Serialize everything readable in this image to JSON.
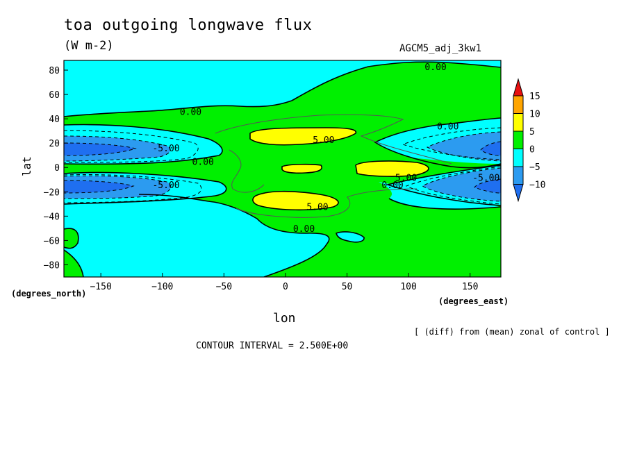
{
  "chart_data": {
    "type": "heatmap",
    "subtype": "filled contour map",
    "title": "toa outgoing longwave flux",
    "units": "(W m-2)",
    "experiment": "AGCM5_adj_3kw1",
    "xlabel": "lon",
    "ylabel": "lat",
    "x_units": "(degrees_east)",
    "y_units": "(degrees_north)",
    "xlim": [
      -180,
      175
    ],
    "ylim": [
      -90,
      88
    ],
    "x_ticks": [
      -150,
      -100,
      -50,
      0,
      50,
      100,
      150
    ],
    "y_ticks": [
      80,
      60,
      40,
      20,
      0,
      -20,
      -40,
      -60,
      -80
    ],
    "x_tick_labels": [
      "−150",
      "−100",
      "−50",
      "0",
      "50",
      "100",
      "150"
    ],
    "y_tick_labels": [
      "80",
      "60",
      "40",
      "20",
      "0",
      "−20",
      "−40",
      "−60",
      "−80"
    ],
    "note": "[ (diff) from (mean) zonal of control ]",
    "contour_interval_text": "CONTOUR INTERVAL = 2.500E+00",
    "contour_interval": 2.5,
    "colorbar": {
      "levels": [
        -10,
        -5,
        0,
        5,
        10,
        15
      ],
      "labels": [
        "15",
        "10",
        "5",
        "0",
        "−5",
        "−10"
      ],
      "colors": {
        "below_-10": "#1f6ff0",
        "-10_to_-5": "#2c9bf0",
        "-5_to_0": "#00ffff",
        "0_to_5": "#00f000",
        "5_to_10": "#ffff00",
        "10_to_15": "#ffa500",
        "above_15": "#e81010"
      }
    },
    "contour_labels": [
      {
        "text": "0.00",
        "lon": 122,
        "lat": 83
      },
      {
        "text": "0.00",
        "lon": -77,
        "lat": 46
      },
      {
        "text": "0.00",
        "lon": 132,
        "lat": 34
      },
      {
        "text": "-5.00",
        "lon": -97,
        "lat": 16
      },
      {
        "text": "5.00",
        "lon": 31,
        "lat": 23
      },
      {
        "text": "0.00",
        "lon": -67,
        "lat": 5
      },
      {
        "text": "5.00",
        "lon": 98,
        "lat": -8
      },
      {
        "text": "0.00",
        "lon": 87,
        "lat": -14
      },
      {
        "text": "-5.00",
        "lon": -97,
        "lat": -14
      },
      {
        "text": "-5.00",
        "lon": 163,
        "lat": -8
      },
      {
        "text": "5.00",
        "lon": 26,
        "lat": -32
      },
      {
        "text": "0.00",
        "lon": 15,
        "lat": -50
      }
    ]
  }
}
